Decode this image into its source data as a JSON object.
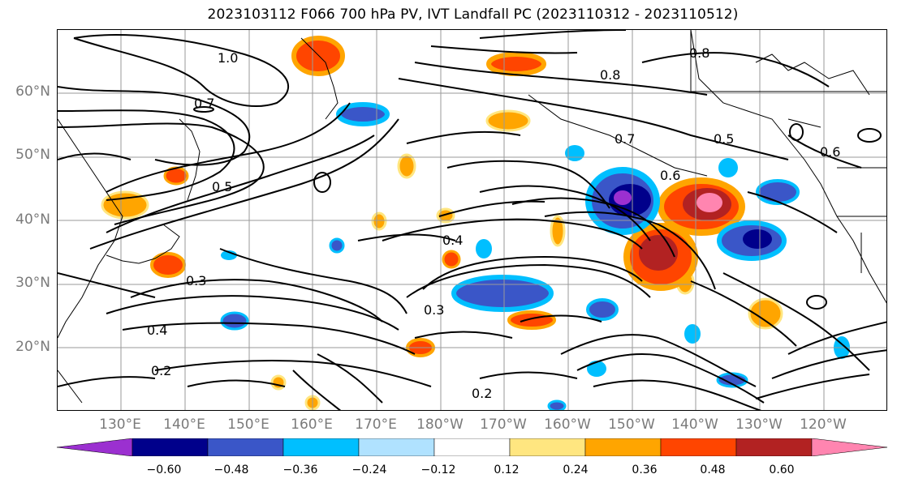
{
  "title": "2023103112 F066 700 hPa PV, IVT Landfall PC (2023110312 - 2023110512)",
  "map": {
    "latitude_labels": [
      "60°N",
      "50°N",
      "40°N",
      "30°N",
      "20°N"
    ],
    "longitude_labels": [
      "130°E",
      "140°E",
      "150°E",
      "160°E",
      "170°E",
      "180°W",
      "170°W",
      "160°W",
      "150°W",
      "140°W",
      "130°W",
      "120°W"
    ],
    "contour_labels": [
      "1.0",
      "0.8",
      "0.7",
      "0.6",
      "0.5",
      "0.4",
      "0.3",
      "0.2",
      "0.8",
      "0.7",
      "0.6",
      "0.5",
      "0.4",
      "0.3",
      "0.2"
    ]
  },
  "colorbar": {
    "tick_labels": [
      "−0.60",
      "−0.48",
      "−0.36",
      "−0.24",
      "−0.12",
      "0.12",
      "0.24",
      "0.36",
      "0.48",
      "0.60"
    ],
    "colors": [
      "#9b30d0",
      "#00008b",
      "#3a56c8",
      "#00bfff",
      "#b0e2ff",
      "#ffffff",
      "#ffe680",
      "#ffa500",
      "#ff4500",
      "#b22222",
      "#ff85b0"
    ]
  }
}
